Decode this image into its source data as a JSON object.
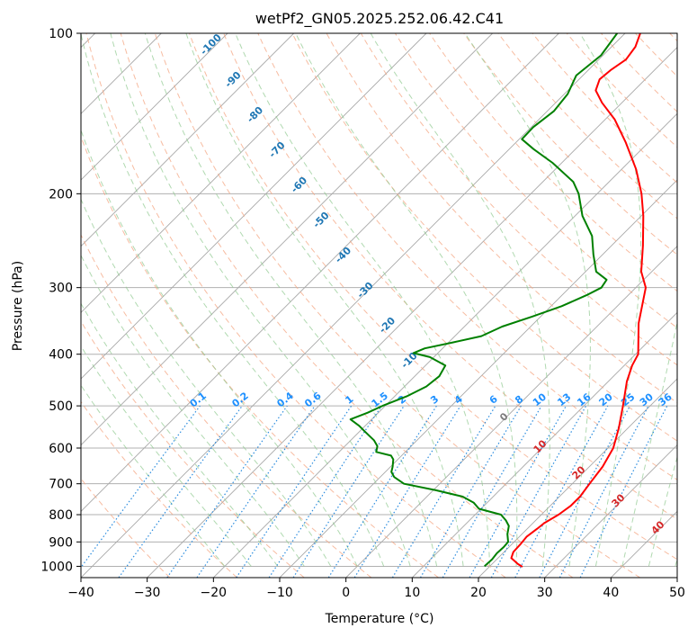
{
  "chart_data": {
    "type": "line",
    "title": "wetPf2_GN05.2025.252.06.42.C41",
    "xlabel": "Temperature (°C)",
    "ylabel": "Pressure (hPa)",
    "xlim": [
      -40,
      50
    ],
    "ylim": [
      1050,
      100
    ],
    "y_scale": "log",
    "skew": "skew-T (45°)",
    "x_ticks": [
      "−40",
      "−30",
      "−20",
      "−10",
      "0",
      "10",
      "20",
      "30",
      "40",
      "50"
    ],
    "y_ticks": [
      "100",
      "200",
      "300",
      "400",
      "500",
      "600",
      "700",
      "800",
      "900",
      "1000"
    ],
    "grid": true,
    "series": [
      {
        "color": "#ff0000",
        "points": [
          {
            "p": 1002,
            "t": 25.0
          },
          {
            "p": 990,
            "t": 23.9
          },
          {
            "p": 965,
            "t": 22.0
          },
          {
            "p": 940,
            "t": 21.4
          },
          {
            "p": 910,
            "t": 21.3
          },
          {
            "p": 880,
            "t": 21.1
          },
          {
            "p": 850,
            "t": 21.5
          },
          {
            "p": 830,
            "t": 21.7
          },
          {
            "p": 800,
            "t": 22.6
          },
          {
            "p": 770,
            "t": 23.1
          },
          {
            "p": 740,
            "t": 23.1
          },
          {
            "p": 700,
            "t": 22.6
          },
          {
            "p": 650,
            "t": 22.0
          },
          {
            "p": 600,
            "t": 20.8
          },
          {
            "p": 550,
            "t": 18.6
          },
          {
            "p": 500,
            "t": 15.9
          },
          {
            "p": 450,
            "t": 12.8
          },
          {
            "p": 420,
            "t": 11.2
          },
          {
            "p": 400,
            "t": 10.4
          },
          {
            "p": 350,
            "t": 5.8
          },
          {
            "p": 300,
            "t": 1.5
          },
          {
            "p": 280,
            "t": -1.6
          },
          {
            "p": 250,
            "t": -5.3
          },
          {
            "p": 220,
            "t": -9.7
          },
          {
            "p": 200,
            "t": -13.3
          },
          {
            "p": 180,
            "t": -17.8
          },
          {
            "p": 160,
            "t": -23.5
          },
          {
            "p": 145,
            "t": -28.6
          },
          {
            "p": 135,
            "t": -33.0
          },
          {
            "p": 128,
            "t": -35.8
          },
          {
            "p": 122,
            "t": -36.9
          },
          {
            "p": 117,
            "t": -36.6
          },
          {
            "p": 112,
            "t": -35.9
          },
          {
            "p": 106,
            "t": -36.4
          },
          {
            "p": 100,
            "t": -37.7
          }
        ]
      },
      {
        "color": "#008000",
        "points": [
          {
            "p": 1000,
            "t": 19.2
          },
          {
            "p": 970,
            "t": 19.3
          },
          {
            "p": 945,
            "t": 19.1
          },
          {
            "p": 920,
            "t": 19.2
          },
          {
            "p": 900,
            "t": 19.1
          },
          {
            "p": 870,
            "t": 17.8
          },
          {
            "p": 840,
            "t": 16.8
          },
          {
            "p": 820,
            "t": 15.5
          },
          {
            "p": 800,
            "t": 13.9
          },
          {
            "p": 780,
            "t": 9.7
          },
          {
            "p": 760,
            "t": 8.0
          },
          {
            "p": 740,
            "t": 5.4
          },
          {
            "p": 720,
            "t": 0.4
          },
          {
            "p": 700,
            "t": -5.4
          },
          {
            "p": 680,
            "t": -7.9
          },
          {
            "p": 665,
            "t": -9.1
          },
          {
            "p": 650,
            "t": -9.7
          },
          {
            "p": 630,
            "t": -10.7
          },
          {
            "p": 620,
            "t": -11.6
          },
          {
            "p": 610,
            "t": -14.4
          },
          {
            "p": 595,
            "t": -15.1
          },
          {
            "p": 580,
            "t": -16.5
          },
          {
            "p": 560,
            "t": -19.0
          },
          {
            "p": 545,
            "t": -20.9
          },
          {
            "p": 530,
            "t": -23.2
          },
          {
            "p": 515,
            "t": -21.6
          },
          {
            "p": 500,
            "t": -20.4
          },
          {
            "p": 480,
            "t": -18.2
          },
          {
            "p": 460,
            "t": -16.7
          },
          {
            "p": 440,
            "t": -16.3
          },
          {
            "p": 420,
            "t": -17.0
          },
          {
            "p": 405,
            "t": -20.6
          },
          {
            "p": 398,
            "t": -23.7
          },
          {
            "p": 390,
            "t": -22.7
          },
          {
            "p": 380,
            "t": -19.3
          },
          {
            "p": 370,
            "t": -16.0
          },
          {
            "p": 355,
            "t": -14.3
          },
          {
            "p": 340,
            "t": -11.3
          },
          {
            "p": 325,
            "t": -8.4
          },
          {
            "p": 310,
            "t": -6.3
          },
          {
            "p": 300,
            "t": -5.2
          },
          {
            "p": 290,
            "t": -5.6
          },
          {
            "p": 280,
            "t": -8.4
          },
          {
            "p": 260,
            "t": -11.4
          },
          {
            "p": 240,
            "t": -14.4
          },
          {
            "p": 220,
            "t": -18.9
          },
          {
            "p": 200,
            "t": -22.8
          },
          {
            "p": 190,
            "t": -25.4
          },
          {
            "p": 175,
            "t": -31.4
          },
          {
            "p": 165,
            "t": -36.3
          },
          {
            "p": 158,
            "t": -39.6
          },
          {
            "p": 150,
            "t": -39.7
          },
          {
            "p": 140,
            "t": -39.0
          },
          {
            "p": 130,
            "t": -39.5
          },
          {
            "p": 120,
            "t": -41.0
          },
          {
            "p": 110,
            "t": -40.3
          },
          {
            "p": 100,
            "t": -41.2
          }
        ]
      }
    ],
    "dry_adiabat_labels": [
      "-100",
      "-90",
      "-80",
      "-70",
      "-60",
      "-50",
      "-40",
      "-30",
      "-20",
      "-10"
    ],
    "mixing_ratio_labels": [
      "0.1",
      "0.2",
      "0.4",
      "0.6",
      "1",
      "1.5",
      "2",
      "3",
      "4",
      "6",
      "8",
      "10",
      "13",
      "16",
      "20",
      "25",
      "30",
      "36"
    ],
    "moist_adiabat_labels": [
      "0",
      "10",
      "20",
      "30",
      "40"
    ],
    "colors": {
      "temperature": "#ff0000",
      "dewpoint": "#008000",
      "isotherm": "#a8a8a8",
      "dry_adiabat": "#f4a582",
      "moist_adiabat": "#8fc98f",
      "mixing_ratio": "#2b8cde",
      "isobar": "#b0b0b0"
    }
  }
}
